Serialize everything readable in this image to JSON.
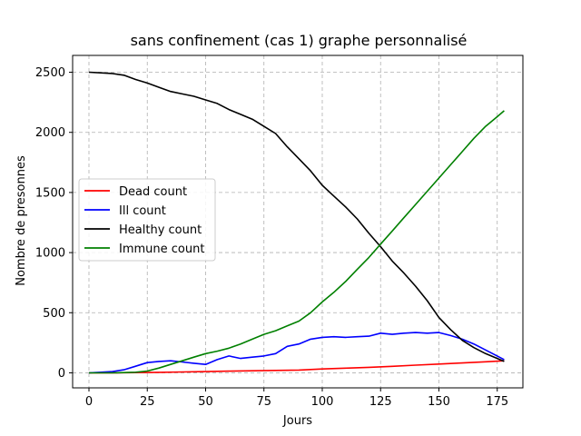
{
  "chart_data": {
    "type": "line",
    "title": "sans confinement (cas 1) graphe personnalisé",
    "xlabel": "Jours",
    "ylabel": "Nombre de presonnes",
    "xlim": [
      -7,
      186
    ],
    "ylim": [
      -125,
      2640
    ],
    "xticks": [
      0,
      25,
      50,
      75,
      100,
      125,
      150,
      175
    ],
    "yticks": [
      0,
      500,
      1000,
      1500,
      2000,
      2500
    ],
    "grid": true,
    "legend_position": "center-left",
    "series": [
      {
        "name": "Dead count",
        "color": "#ff0000",
        "x": [
          0,
          10,
          20,
          30,
          40,
          50,
          60,
          70,
          80,
          90,
          100,
          110,
          120,
          130,
          140,
          150,
          160,
          170,
          178
        ],
        "y": [
          0,
          0,
          2,
          4,
          7,
          10,
          14,
          17,
          20,
          23,
          32,
          39,
          46,
          54,
          64,
          73,
          82,
          92,
          100
        ]
      },
      {
        "name": "Ill count",
        "color": "#0000ff",
        "x": [
          0,
          10,
          15,
          20,
          25,
          30,
          35,
          40,
          45,
          50,
          55,
          60,
          65,
          70,
          75,
          80,
          85,
          90,
          95,
          100,
          105,
          110,
          115,
          120,
          125,
          130,
          135,
          140,
          145,
          150,
          155,
          160,
          165,
          170,
          175,
          178
        ],
        "y": [
          0,
          10,
          25,
          55,
          85,
          95,
          100,
          90,
          80,
          70,
          110,
          140,
          120,
          130,
          140,
          160,
          220,
          240,
          280,
          295,
          300,
          295,
          300,
          305,
          330,
          320,
          330,
          335,
          330,
          335,
          310,
          280,
          240,
          190,
          140,
          110
        ]
      },
      {
        "name": "Healthy count",
        "color": "#000000",
        "x": [
          0,
          5,
          10,
          15,
          20,
          25,
          30,
          35,
          40,
          45,
          50,
          55,
          60,
          65,
          70,
          75,
          80,
          85,
          90,
          95,
          100,
          105,
          110,
          115,
          120,
          125,
          130,
          135,
          140,
          145,
          150,
          155,
          160,
          165,
          170,
          175,
          178
        ],
        "y": [
          2500,
          2495,
          2490,
          2475,
          2440,
          2410,
          2375,
          2340,
          2320,
          2300,
          2270,
          2240,
          2190,
          2150,
          2110,
          2050,
          1990,
          1880,
          1780,
          1680,
          1560,
          1470,
          1380,
          1280,
          1160,
          1050,
          930,
          830,
          720,
          600,
          460,
          360,
          270,
          210,
          160,
          120,
          95
        ]
      },
      {
        "name": "Immune count",
        "color": "#008000",
        "x": [
          0,
          10,
          20,
          25,
          30,
          35,
          40,
          45,
          50,
          55,
          60,
          65,
          70,
          75,
          80,
          85,
          90,
          95,
          100,
          105,
          110,
          115,
          120,
          125,
          130,
          135,
          140,
          145,
          150,
          155,
          160,
          165,
          170,
          175,
          178
        ],
        "y": [
          0,
          0,
          5,
          15,
          40,
          70,
          100,
          130,
          160,
          180,
          205,
          240,
          280,
          320,
          350,
          390,
          430,
          500,
          590,
          670,
          760,
          860,
          960,
          1070,
          1180,
          1290,
          1400,
          1510,
          1620,
          1730,
          1840,
          1950,
          2050,
          2130,
          2180
        ]
      }
    ]
  }
}
